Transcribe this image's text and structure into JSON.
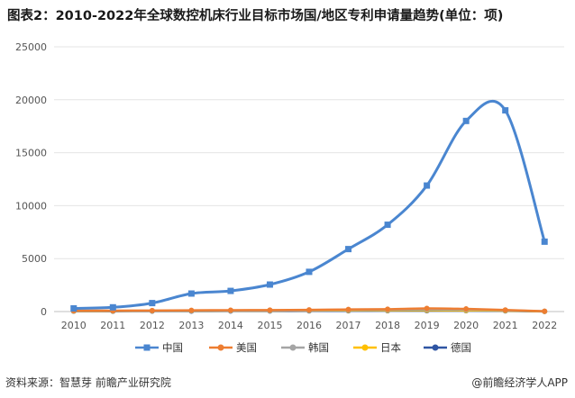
{
  "title": "图表2：2010-2022年全球数控机床行业目标市场国/地区专利申请量趋势(单位：项)",
  "source": "资料来源：智慧芽 前瞻产业研究院",
  "brand": "@前瞻经济学人APP",
  "colors": {
    "中国": "#4a86d0",
    "美国": "#ed7d31",
    "韩国": "#a5a5a5",
    "日本": "#ffc000",
    "德国": "#2f55a3"
  },
  "chart_data": {
    "type": "line",
    "title": "图表2：2010-2022年全球数控机床行业目标市场国/地区专利申请量趋势(单位：项)",
    "x": [
      "2010",
      "2011",
      "2012",
      "2013",
      "2014",
      "2015",
      "2016",
      "2017",
      "2018",
      "2019",
      "2020",
      "2021",
      "2022"
    ],
    "ylim": [
      0,
      25000
    ],
    "yticks": [
      0,
      5000,
      10000,
      15000,
      20000,
      25000
    ],
    "grid": true,
    "legend_position": "bottom",
    "series": [
      {
        "name": "中国",
        "marker": "square",
        "values": [
          300,
          400,
          800,
          1700,
          1950,
          2550,
          3750,
          5900,
          8200,
          11900,
          18000,
          19000,
          6600
        ]
      },
      {
        "name": "美国",
        "marker": "circle",
        "values": [
          80,
          90,
          100,
          120,
          130,
          140,
          160,
          200,
          220,
          300,
          250,
          150,
          30
        ]
      },
      {
        "name": "韩国",
        "marker": "circle",
        "values": [
          50,
          60,
          70,
          80,
          90,
          100,
          120,
          150,
          170,
          200,
          180,
          120,
          20
        ]
      },
      {
        "name": "日本",
        "marker": "circle",
        "values": [
          40,
          50,
          60,
          70,
          80,
          90,
          100,
          110,
          120,
          130,
          110,
          90,
          15
        ]
      },
      {
        "name": "德国",
        "marker": "circle",
        "values": [
          30,
          35,
          40,
          45,
          50,
          55,
          60,
          70,
          80,
          90,
          80,
          60,
          10
        ]
      }
    ]
  }
}
